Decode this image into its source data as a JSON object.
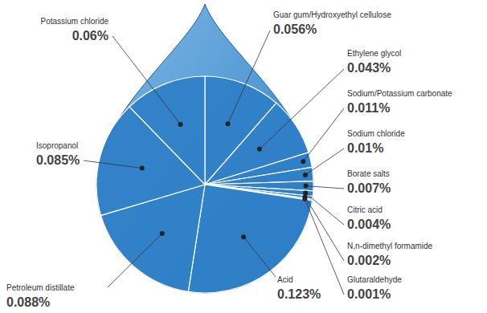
{
  "chart_data": {
    "type": "pie",
    "categories": [
      "Guar gum/Hydroxyethyl cellulose",
      "Ethylene glycol",
      "Sodium/Potassium carbonate",
      "Sodium chloride",
      "Borate salts",
      "Citric acid",
      "N,n-dimethyl formamide",
      "Glutaraldehyde",
      "Acid",
      "Petroleum distillate",
      "Isopropanol",
      "Potassium chloride"
    ],
    "values": [
      0.056,
      0.043,
      0.011,
      0.01,
      0.007,
      0.004,
      0.002,
      0.001,
      0.123,
      0.088,
      0.085,
      0.06
    ],
    "value_labels": [
      "0.056%",
      "0.043%",
      "0.011%",
      "0.01%",
      "0.007%",
      "0.004%",
      "0.002%",
      "0.001%",
      "0.123%",
      "0.088%",
      "0.085%",
      "0.06%"
    ],
    "color": "#2e7ec6",
    "data_labels": true
  }
}
